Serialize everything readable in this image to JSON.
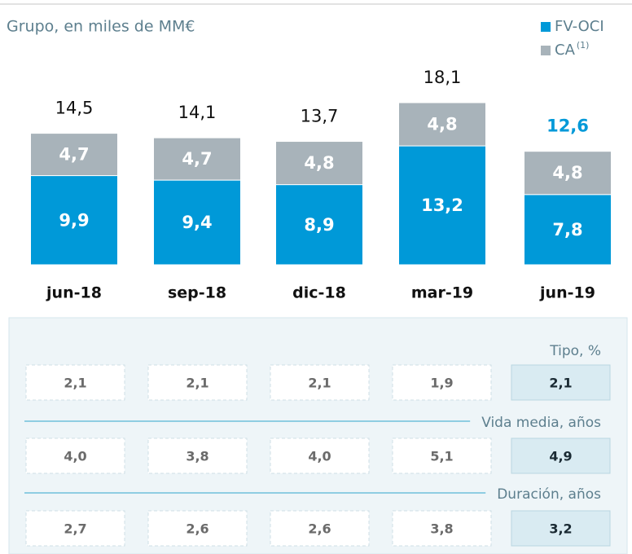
{
  "chart_data": {
    "type": "stacked_bar",
    "title": "Grupo, en miles de MM€",
    "categories": [
      "jun-18",
      "sep-18",
      "dic-18",
      "mar-19",
      "jun-19"
    ],
    "series": [
      {
        "name": "FV-OCI",
        "color": "#0099d8",
        "values": [
          9.9,
          9.4,
          8.9,
          13.2,
          7.8
        ],
        "value_labels": [
          "9,9",
          "9,4",
          "8,9",
          "13,2",
          "7,8"
        ]
      },
      {
        "name": "CA",
        "legend_note": "(1)",
        "color": "#a8b3ba",
        "values": [
          4.7,
          4.7,
          4.8,
          4.8,
          4.8
        ],
        "value_labels": [
          "4,7",
          "4,7",
          "4,8",
          "4,8",
          "4,8"
        ]
      }
    ],
    "totals": [
      14.5,
      14.1,
      13.7,
      18.1,
      12.6
    ],
    "total_labels": [
      "14,5",
      "14,1",
      "13,7",
      "18,1",
      "12,6"
    ],
    "highlight_color": "#0099d8",
    "ylim": [
      0,
      18
    ]
  },
  "table": {
    "rows": [
      {
        "label": "Tipo, %",
        "values": [
          "2,1",
          "2,1",
          "2,1",
          "1,9",
          "2,1"
        ]
      },
      {
        "label": "Vida media, años",
        "values": [
          "4,0",
          "3,8",
          "4,0",
          "5,1",
          "4,9"
        ]
      },
      {
        "label": "Duración, años",
        "values": [
          "2,7",
          "2,6",
          "2,6",
          "3,8",
          "3,2"
        ]
      }
    ]
  }
}
